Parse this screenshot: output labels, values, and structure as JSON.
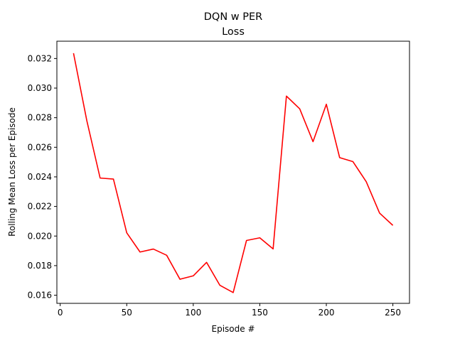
{
  "chart_data": {
    "type": "line",
    "title": "DQN w PER",
    "subtitle": "Loss",
    "xlabel": "Episode #",
    "ylabel": "Rolling Mean Loss per Episode",
    "xlim": [
      -2.5,
      262.5
    ],
    "ylim": [
      0.01545,
      0.03317
    ],
    "x_ticks": [
      0,
      50,
      100,
      150,
      200,
      250
    ],
    "x_tick_labels": [
      "0",
      "50",
      "100",
      "150",
      "200",
      "250"
    ],
    "y_ticks": [
      0.016,
      0.018,
      0.02,
      0.022,
      0.024,
      0.026,
      0.028,
      0.03,
      0.032
    ],
    "y_tick_labels": [
      "0.016",
      "0.018",
      "0.020",
      "0.022",
      "0.024",
      "0.026",
      "0.028",
      "0.030",
      "0.032"
    ],
    "grid": false,
    "legend": "none",
    "series": [
      {
        "color": "#ff0000",
        "x": [
          10,
          20,
          30,
          40,
          50,
          60,
          70,
          80,
          90,
          100,
          110,
          120,
          130,
          140,
          150,
          160,
          170,
          180,
          190,
          200,
          210,
          220,
          230,
          240,
          250
        ],
        "y": [
          0.03236,
          0.0278,
          0.02392,
          0.02385,
          0.02022,
          0.01892,
          0.01912,
          0.0187,
          0.01708,
          0.01731,
          0.01822,
          0.01667,
          0.01618,
          0.0197,
          0.01988,
          0.01913,
          0.02946,
          0.0286,
          0.02638,
          0.02891,
          0.0253,
          0.02503,
          0.02367,
          0.02155,
          0.02072
        ]
      }
    ]
  }
}
